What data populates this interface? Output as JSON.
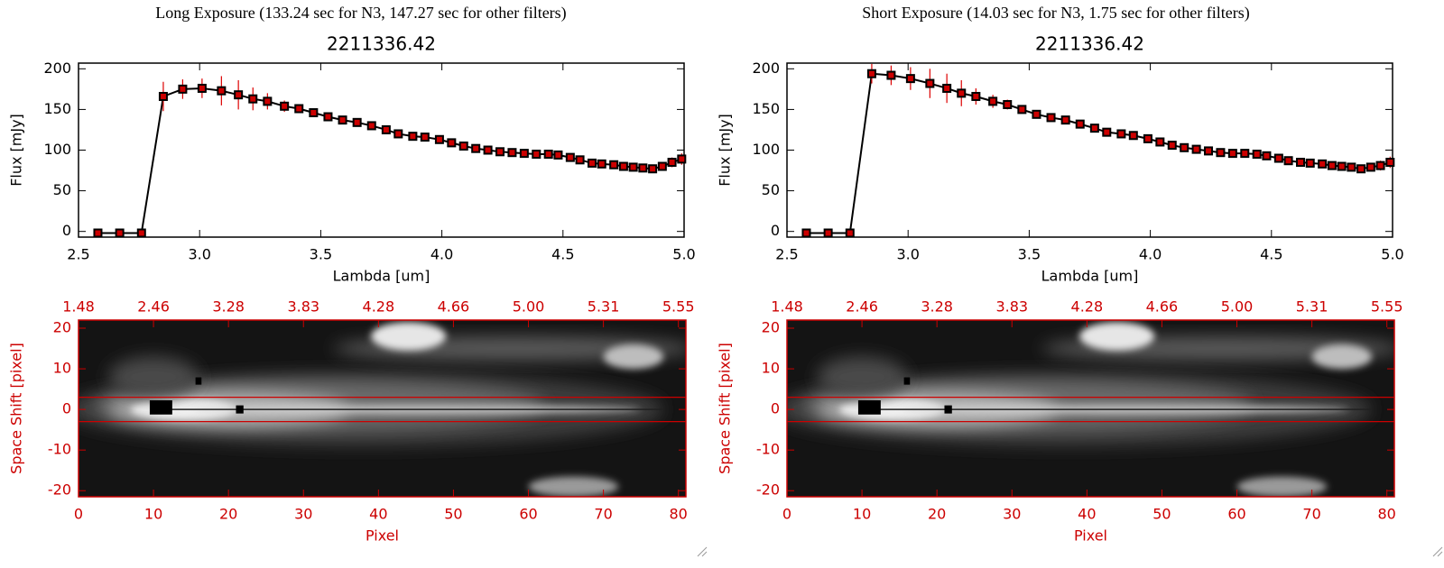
{
  "headers": [
    "Long Exposure (133.24 sec for N3, 147.27 sec for other filters)",
    "Short Exposure (14.03 sec for N3, 1.75 sec for other filters)"
  ],
  "chart_data": [
    {
      "type": "line",
      "title": "2211336.42",
      "x_label": "Lambda [um]",
      "y_label": "Flux [mJy]",
      "x": [
        2.58,
        2.67,
        2.76,
        2.85,
        2.93,
        3.01,
        3.09,
        3.16,
        3.22,
        3.28,
        3.35,
        3.41,
        3.47,
        3.53,
        3.59,
        3.65,
        3.71,
        3.77,
        3.82,
        3.88,
        3.93,
        3.99,
        4.04,
        4.09,
        4.14,
        4.19,
        4.24,
        4.29,
        4.34,
        4.39,
        4.44,
        4.48,
        4.53,
        4.57,
        4.62,
        4.66,
        4.71,
        4.75,
        4.79,
        4.83,
        4.87,
        4.91,
        4.95,
        4.99
      ],
      "values": [
        -2,
        -2,
        -2,
        166,
        175,
        176,
        173,
        168,
        163,
        160,
        154,
        151,
        146,
        141,
        137,
        134,
        130,
        125,
        120,
        117,
        116,
        113,
        109,
        105,
        102,
        100,
        98,
        97,
        96,
        95,
        95,
        94,
        91,
        88,
        84,
        83,
        82,
        80,
        79,
        78,
        77,
        80,
        85,
        89
      ],
      "errors": [
        0,
        0,
        0,
        18,
        12,
        12,
        18,
        18,
        14,
        10,
        7,
        5,
        4,
        4,
        3,
        3,
        3,
        3,
        3,
        3,
        3,
        3,
        3,
        3,
        3,
        3,
        3,
        3,
        3,
        3,
        3,
        3,
        3,
        3,
        3,
        3,
        3,
        3,
        3,
        3,
        3,
        5,
        6,
        7
      ],
      "color": "#000000",
      "marker_color": "#cc0000",
      "error_color": "#dd0000",
      "xlim": [
        2.5,
        5.0
      ],
      "ylim": [
        -7,
        207
      ],
      "xticks": [
        2.5,
        {
          "value": 3,
          "label": "3.0"
        },
        3.5,
        {
          "value": 4,
          "label": "4.0"
        },
        4.5,
        {
          "value": 5,
          "label": "5.0"
        }
      ],
      "yticks": [
        0,
        50,
        100,
        150,
        200
      ]
    },
    {
      "type": "image",
      "x_label": "Pixel",
      "y_label": "Space Shift [pixel]",
      "color": "#cc0000",
      "xlim": [
        0,
        81
      ],
      "ylim": [
        -21.5,
        22
      ],
      "xticks": [
        0,
        10,
        20,
        30,
        40,
        50,
        60,
        70,
        80
      ],
      "x2ticks": [
        {
          "value": 0,
          "label": "1.48"
        },
        {
          "value": 10,
          "label": "2.46"
        },
        {
          "value": 20,
          "label": "3.28"
        },
        {
          "value": 30,
          "label": "3.83"
        },
        {
          "value": 40,
          "label": "4.28"
        },
        {
          "value": 50,
          "label": "4.66"
        },
        {
          "value": 60,
          "label": "5.00"
        },
        {
          "value": 70,
          "label": "5.31"
        },
        {
          "value": 80,
          "label": "5.55"
        }
      ],
      "yticks": [
        -20,
        -10,
        0,
        10,
        20
      ],
      "hlines": [
        -3,
        3
      ]
    },
    {
      "type": "line",
      "title": "2211336.42",
      "x_label": "Lambda [um]",
      "y_label": "Flux [mJy]",
      "x": [
        2.58,
        2.67,
        2.76,
        2.85,
        2.93,
        3.01,
        3.09,
        3.16,
        3.22,
        3.28,
        3.35,
        3.41,
        3.47,
        3.53,
        3.59,
        3.65,
        3.71,
        3.77,
        3.82,
        3.88,
        3.93,
        3.99,
        4.04,
        4.09,
        4.14,
        4.19,
        4.24,
        4.29,
        4.34,
        4.39,
        4.44,
        4.48,
        4.53,
        4.57,
        4.62,
        4.66,
        4.71,
        4.75,
        4.79,
        4.83,
        4.87,
        4.91,
        4.95,
        4.99
      ],
      "values": [
        -2,
        -2,
        -2,
        194,
        192,
        188,
        182,
        176,
        170,
        166,
        160,
        156,
        150,
        144,
        140,
        137,
        132,
        127,
        122,
        120,
        118,
        114,
        110,
        106,
        103,
        101,
        99,
        97,
        96,
        96,
        95,
        93,
        90,
        87,
        85,
        84,
        83,
        81,
        80,
        79,
        77,
        79,
        81,
        85
      ],
      "errors": [
        0,
        0,
        0,
        12,
        12,
        14,
        18,
        18,
        16,
        10,
        8,
        6,
        4,
        4,
        3,
        3,
        3,
        3,
        3,
        3,
        3,
        3,
        3,
        3,
        3,
        3,
        3,
        3,
        3,
        3,
        3,
        3,
        3,
        3,
        3,
        3,
        3,
        3,
        3,
        3,
        3,
        5,
        6,
        7
      ],
      "color": "#000000",
      "marker_color": "#cc0000",
      "error_color": "#dd0000",
      "xlim": [
        2.5,
        5.0
      ],
      "ylim": [
        -7,
        207
      ],
      "xticks": [
        2.5,
        {
          "value": 3,
          "label": "3.0"
        },
        3.5,
        {
          "value": 4,
          "label": "4.0"
        },
        4.5,
        {
          "value": 5,
          "label": "5.0"
        }
      ],
      "yticks": [
        0,
        50,
        100,
        150,
        200
      ]
    },
    {
      "type": "image",
      "x_label": "Pixel",
      "y_label": "Space Shift [pixel]",
      "color": "#cc0000",
      "xlim": [
        0,
        81
      ],
      "ylim": [
        -21.5,
        22
      ],
      "xticks": [
        0,
        10,
        20,
        30,
        40,
        50,
        60,
        70,
        80
      ],
      "x2ticks": [
        {
          "value": 0,
          "label": "1.48"
        },
        {
          "value": 10,
          "label": "2.46"
        },
        {
          "value": 20,
          "label": "3.28"
        },
        {
          "value": 30,
          "label": "3.83"
        },
        {
          "value": 40,
          "label": "4.28"
        },
        {
          "value": 50,
          "label": "4.66"
        },
        {
          "value": 60,
          "label": "5.00"
        },
        {
          "value": 70,
          "label": "5.31"
        },
        {
          "value": 80,
          "label": "5.55"
        }
      ],
      "yticks": [
        -20,
        -10,
        0,
        10,
        20
      ],
      "hlines": [
        -3,
        3
      ]
    }
  ]
}
